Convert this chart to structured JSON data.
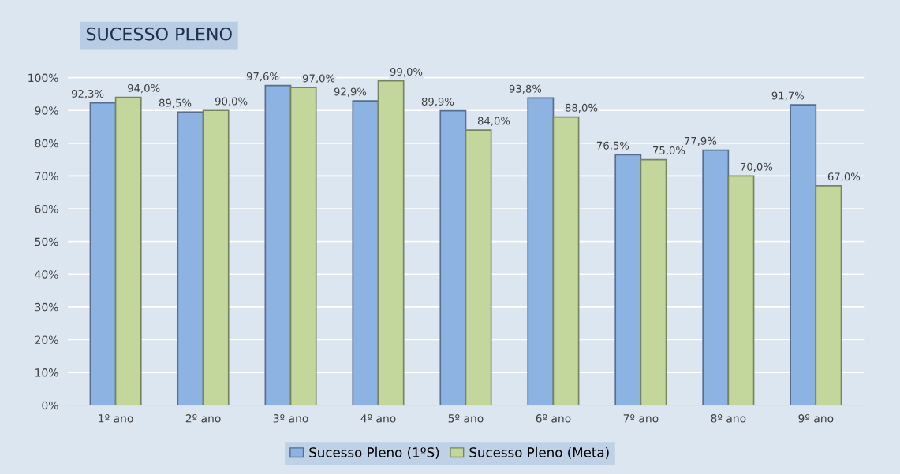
{
  "chart_data": {
    "type": "bar",
    "title": "SUCESSO PLENO",
    "categories": [
      "1º ano",
      "2º ano",
      "3º ano",
      "4º ano",
      "5º ano",
      "6º ano",
      "7º ano",
      "8º ano",
      "9º ano"
    ],
    "series": [
      {
        "name": "Sucesso Pleno (1ºS)",
        "color": "#8db3e2",
        "values": [
          92.3,
          89.5,
          97.6,
          92.9,
          89.9,
          93.8,
          76.5,
          77.9,
          91.7
        ],
        "value_labels": [
          "92,3%",
          "89,5%",
          "97,6%",
          "92,9%",
          "89,9%",
          "93,8%",
          "76,5%",
          "77,9%",
          "91,7%"
        ]
      },
      {
        "name": "Sucesso Pleno (Meta)",
        "color": "#c3d69b",
        "values": [
          94.0,
          90.0,
          97.0,
          99.0,
          84.0,
          88.0,
          75.0,
          70.0,
          67.0
        ],
        "value_labels": [
          "94,0%",
          "90,0%",
          "97,0%",
          "99,0%",
          "84,0%",
          "88,0%",
          "75,0%",
          "70,0%",
          "67,0%"
        ]
      }
    ],
    "ylim": [
      0,
      102
    ],
    "yticks": [
      {
        "value": 0,
        "label": "0%"
      },
      {
        "value": 10,
        "label": "10%"
      },
      {
        "value": 20,
        "label": "20%"
      },
      {
        "value": 30,
        "label": "30%"
      },
      {
        "value": 40,
        "label": "40%"
      },
      {
        "value": 50,
        "label": "50%"
      },
      {
        "value": 60,
        "label": "60%"
      },
      {
        "value": 70,
        "label": "70%"
      },
      {
        "value": 80,
        "label": "80%"
      },
      {
        "value": 90,
        "label": "90%"
      },
      {
        "value": 100,
        "label": "100%"
      }
    ],
    "grid": "y",
    "legend": "bottom"
  }
}
